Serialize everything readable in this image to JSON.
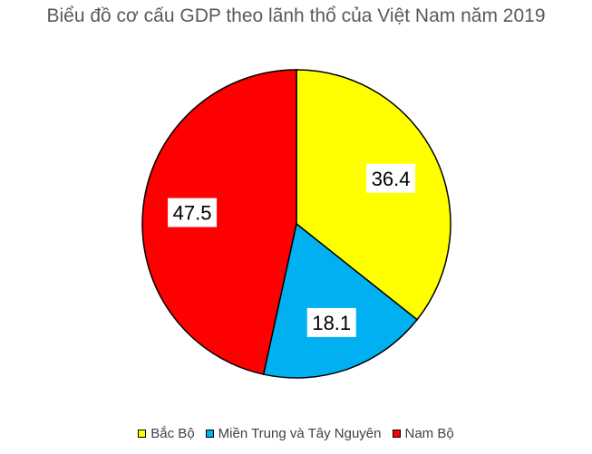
{
  "chart_data": {
    "type": "pie",
    "title": "Biểu đồ cơ cấu GDP theo lãnh thổ của Việt Nam năm 2019",
    "categories": [
      "Bắc Bộ",
      "Miền Trung và Tây Nguyên",
      "Nam Bộ"
    ],
    "values": [
      36.4,
      18.1,
      47.5
    ],
    "data_labels": [
      "36.4",
      "18.1",
      "47.5"
    ],
    "colors": [
      "#FFFF00",
      "#00B0F0",
      "#FF0000"
    ],
    "legend": "bottom",
    "start": "12 o'clock",
    "direction": "clockwise"
  }
}
